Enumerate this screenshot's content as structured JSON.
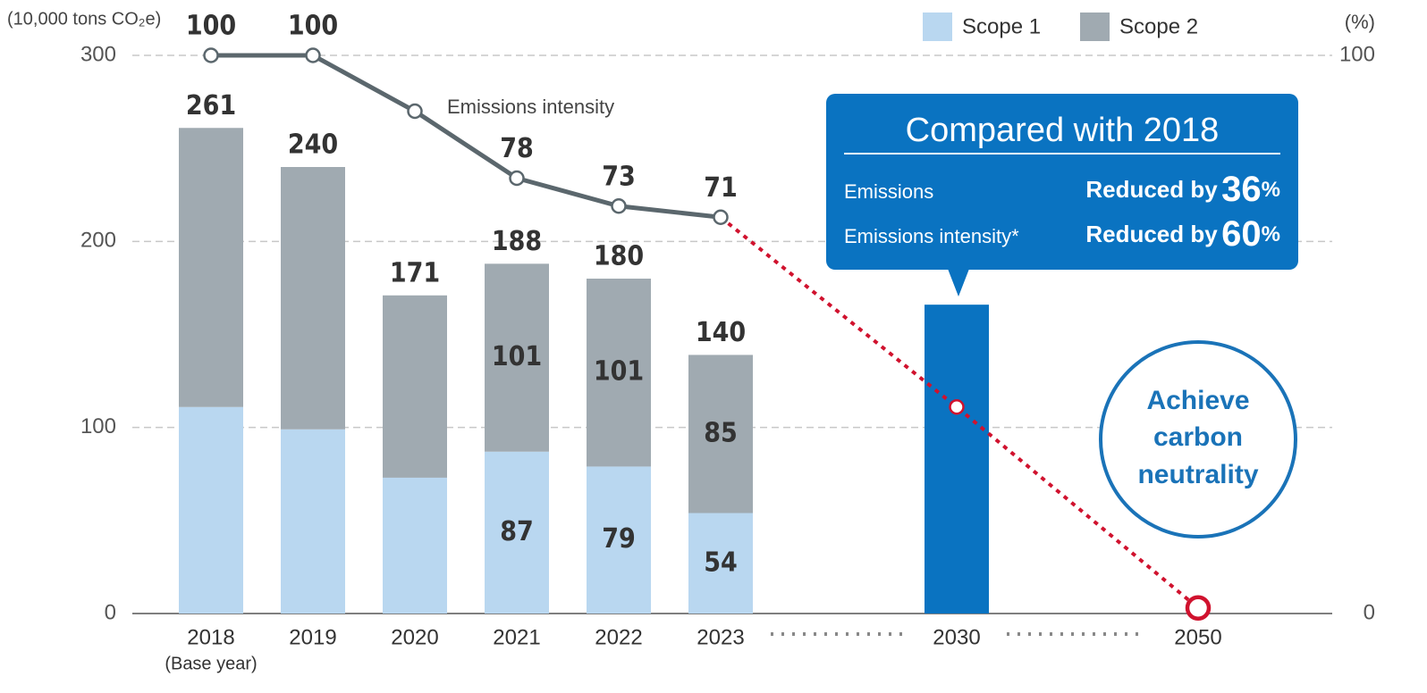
{
  "chart_data": {
    "type": "bar",
    "y_label": "(10,000 tons CO₂e)",
    "y2_label": "(%)",
    "categories": [
      "2018",
      "2019",
      "2020",
      "2021",
      "2022",
      "2023",
      "2030",
      "2050"
    ],
    "category_notes": [
      "(Base year)",
      null,
      null,
      null,
      null,
      null,
      null,
      null
    ],
    "ylim": [
      0,
      300
    ],
    "yticks": [
      0,
      100,
      200,
      300
    ],
    "y2lim": [
      0,
      100
    ],
    "y2ticks": [
      0,
      100
    ],
    "grid": true,
    "totals": [
      261,
      240,
      171,
      188,
      180,
      140,
      null,
      null
    ],
    "series": [
      {
        "name": "Scope 1",
        "type": "bar",
        "color": "#b9d7f0",
        "values": [
          111,
          99,
          73,
          87,
          79,
          54,
          null,
          null
        ],
        "value_labels": [
          null,
          null,
          null,
          "87",
          "79",
          "54",
          null,
          null
        ]
      },
      {
        "name": "Scope 2",
        "type": "bar",
        "color": "#a0aab1",
        "values": [
          150,
          141,
          98,
          101,
          101,
          85,
          null,
          null
        ],
        "value_labels": [
          null,
          null,
          null,
          "101",
          "101",
          "85",
          null,
          null
        ]
      },
      {
        "type": "bar",
        "color": "#0a73c1",
        "values": [
          null,
          null,
          null,
          null,
          null,
          null,
          166,
          null
        ]
      },
      {
        "name": "Emissions intensity",
        "type": "line",
        "axis": "y2",
        "color": "#5b676d",
        "values": [
          100,
          100,
          90,
          78,
          73,
          71,
          null,
          null
        ],
        "value_labels": [
          "100",
          "100",
          null,
          "78",
          "73",
          "71",
          null,
          null
        ]
      },
      {
        "type": "line",
        "axis": "y2",
        "dashed": true,
        "color": "#d0122e",
        "values": [
          null,
          null,
          null,
          null,
          null,
          71,
          37,
          1
        ]
      }
    ],
    "callout": {
      "title": "Compared with 2018",
      "rows": [
        {
          "label": "Emissions",
          "text": "Reduced by",
          "value": 36,
          "unit": "%"
        },
        {
          "label": "Emissions intensity*",
          "text": "Reduced by",
          "value": 60,
          "unit": "%"
        }
      ]
    },
    "goal": [
      "Achieve",
      "carbon",
      "neutrality"
    ]
  }
}
